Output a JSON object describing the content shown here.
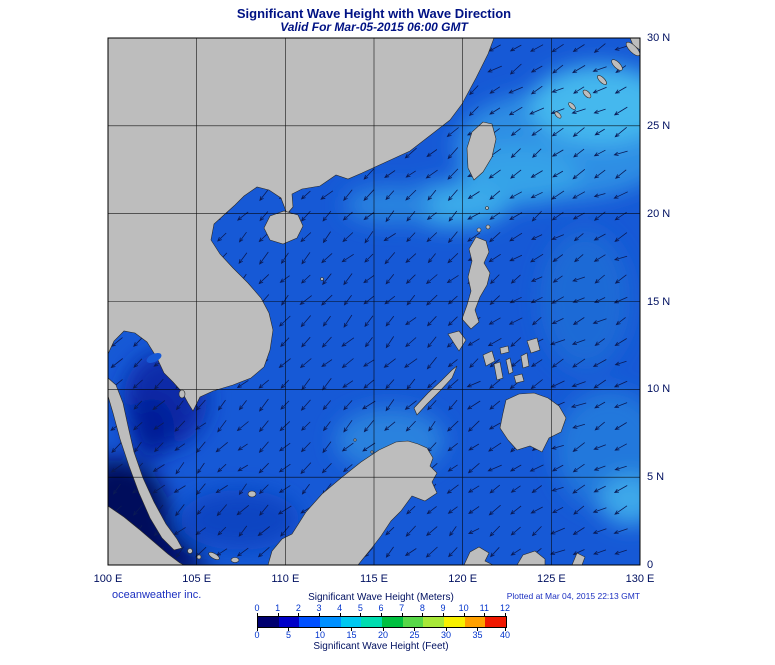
{
  "header": {
    "title": "Significant Wave Height with Wave Direction",
    "subtitle": "Valid For Mar-05-2015 06:00 GMT"
  },
  "footer": {
    "credit": "oceanweather inc.",
    "plotted": "Plotted at Mar 04, 2015 22:13 GMT"
  },
  "colors": {
    "ocean_base": "#1659d6",
    "land": "#bdbdbd",
    "coastline": "#2a2a2a",
    "grid": "#000000",
    "arrow": "#0a1a55",
    "title_text": "#001284",
    "axis_text": "#001060",
    "credit_text": "#1b2fc0",
    "colorbar_tick_text": "#0033cc"
  },
  "chart_data": {
    "type": "heatmap",
    "title": "Significant Wave Height with Wave Direction",
    "valid_time": "Mar-05-2015 06:00 GMT",
    "plotted_time": "Mar 04, 2015 22:13 GMT",
    "region": {
      "lon_min_e": 100,
      "lon_max_e": 130,
      "lat_min_n": 0,
      "lat_max_n": 30
    },
    "x_ticks": [
      "100 E",
      "105 E",
      "110 E",
      "115 E",
      "120 E",
      "125 E",
      "130 E"
    ],
    "y_ticks": [
      "30 N",
      "25 N",
      "20 N",
      "15 N",
      "10 N",
      "5 N",
      "0"
    ],
    "grid": true,
    "wave_direction_note": "arrows point toward the southwest (waves arriving from the northeast)",
    "legend": {
      "meters_label": "Significant Wave Height (Meters)",
      "feet_label": "Significant Wave Height (Feet)",
      "meters_ticks": [
        0,
        1,
        2,
        3,
        4,
        5,
        6,
        7,
        8,
        9,
        10,
        11,
        12
      ],
      "feet_ticks": [
        0,
        5,
        10,
        15,
        20,
        25,
        30,
        35,
        40
      ],
      "segment_colors": [
        "#000070",
        "#0000c8",
        "#0050ff",
        "#0090ff",
        "#00c8f0",
        "#00ddb0",
        "#00c040",
        "#58d848",
        "#a8e838",
        "#f8f000",
        "#ffa000",
        "#f01800"
      ]
    },
    "observed_values_m": {
      "south_china_sea": "2-3",
      "gulf_of_thailand": "1-2",
      "strait_of_malacca": "0-1",
      "luzon_strait_and_east_of_taiwan": "3-4",
      "pacific_east_of_philippines": "2-3"
    }
  }
}
